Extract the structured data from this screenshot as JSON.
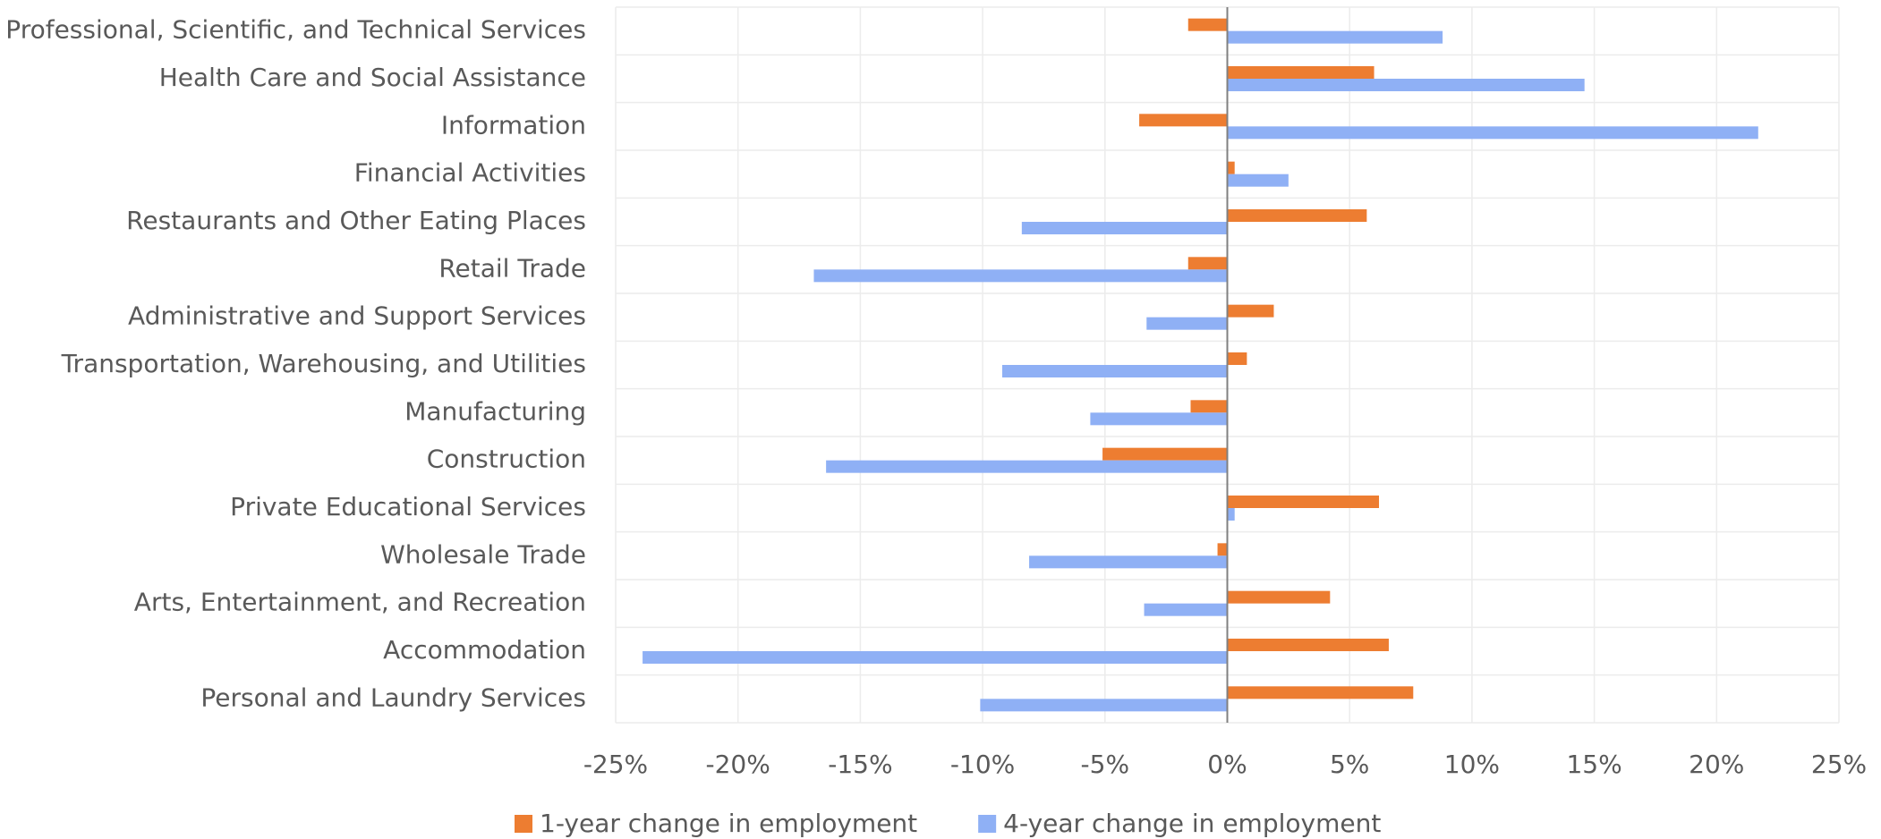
{
  "chart_data": {
    "type": "hbar",
    "categories": [
      "Professional, Scientific, and Technical Services",
      "Health Care and Social Assistance",
      "Information",
      "Financial Activities",
      "Restaurants and Other Eating Places",
      "Retail Trade",
      "Administrative and Support Services",
      "Transportation, Warehousing, and Utilities",
      "Manufacturing",
      "Construction",
      "Private Educational Services",
      "Wholesale Trade",
      "Arts, Entertainment, and Recreation",
      "Accommodation",
      "Personal and Laundry Services"
    ],
    "series": [
      {
        "name": "1-year change in employment",
        "color": "#ed7d31",
        "values": [
          -1.6,
          6.0,
          -3.6,
          0.3,
          5.7,
          -1.6,
          1.9,
          0.8,
          -1.5,
          -5.1,
          6.2,
          -0.4,
          4.2,
          6.6,
          7.6
        ]
      },
      {
        "name": "4-year change in employment",
        "color": "#8fb0f5",
        "values": [
          8.8,
          14.6,
          21.7,
          2.5,
          -8.4,
          -16.9,
          -3.3,
          -9.2,
          -5.6,
          -16.4,
          0.3,
          -8.1,
          -3.4,
          -23.9,
          -10.1
        ]
      }
    ],
    "xlim": [
      -25,
      25
    ],
    "xticks": [
      {
        "value": -25,
        "label": "-25%"
      },
      {
        "value": -20,
        "label": "-20%"
      },
      {
        "value": -15,
        "label": "-15%"
      },
      {
        "value": -10,
        "label": "-10%"
      },
      {
        "value": -5,
        "label": "-5%"
      },
      {
        "value": 0,
        "label": "0%"
      },
      {
        "value": 5,
        "label": "5%"
      },
      {
        "value": 10,
        "label": "10%"
      },
      {
        "value": 15,
        "label": "15%"
      },
      {
        "value": 20,
        "label": "20%"
      },
      {
        "value": 25,
        "label": "25%"
      }
    ],
    "grid": true,
    "legend": "bottom"
  }
}
